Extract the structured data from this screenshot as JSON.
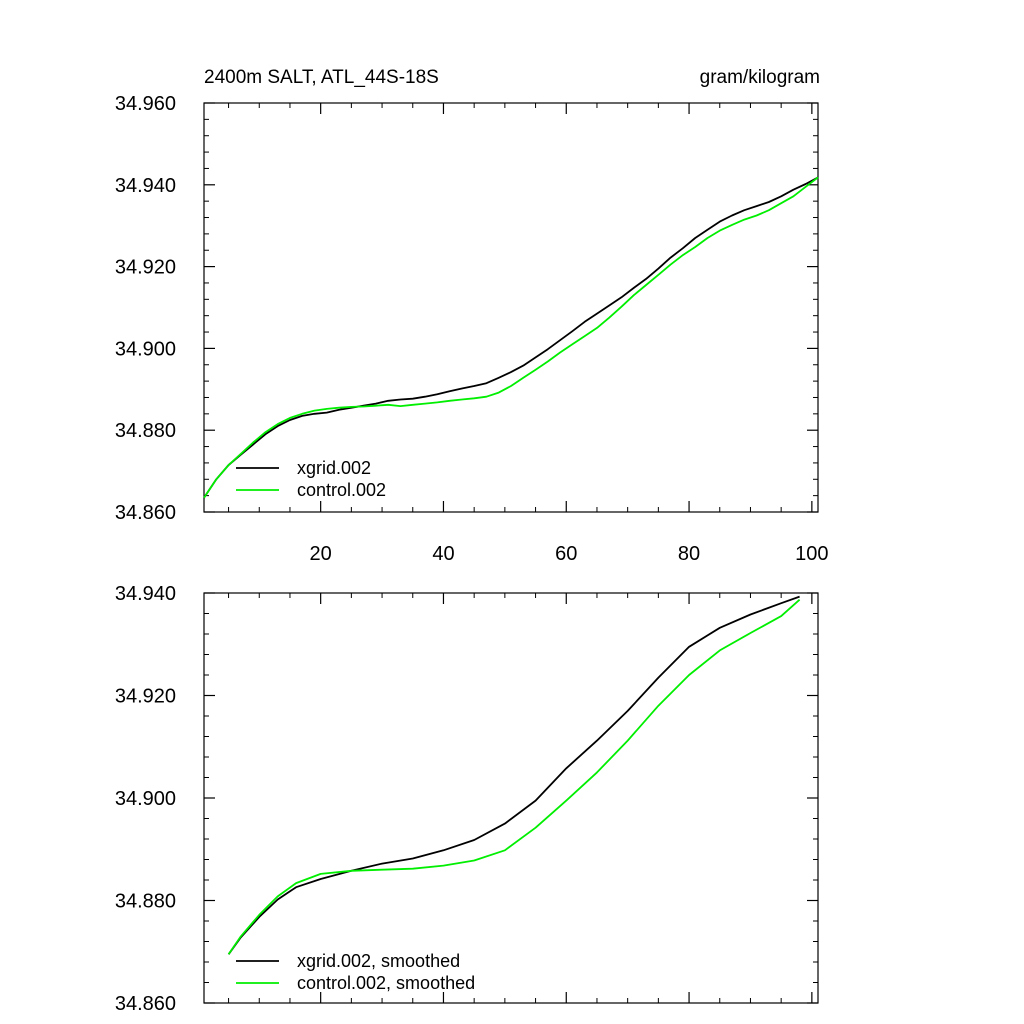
{
  "chart_data": [
    {
      "type": "line",
      "title": "2400m SALT, ATL_44S-18S",
      "units": "gram/kilogram",
      "xlim": [
        1,
        101
      ],
      "ylim": [
        34.86,
        34.96
      ],
      "x_ticks": [
        20,
        40,
        60,
        80,
        100
      ],
      "y_ticks": [
        34.86,
        34.88,
        34.9,
        34.92,
        34.94,
        34.96
      ],
      "x_tick_labels": [
        "20",
        "40",
        "60",
        "80",
        "100"
      ],
      "y_tick_labels": [
        "34.860",
        "34.880",
        "34.900",
        "34.920",
        "34.940",
        "34.960"
      ],
      "legend": [
        "xgrid.002",
        "control.002"
      ],
      "legend_position": "bottom-left",
      "series": [
        {
          "name": "xgrid.002",
          "color": "#000000",
          "x": [
            1,
            3,
            5,
            7,
            9,
            11,
            13,
            15,
            17,
            19,
            21,
            23,
            25,
            27,
            29,
            31,
            33,
            35,
            37,
            39,
            41,
            43,
            45,
            47,
            49,
            51,
            53,
            55,
            57,
            59,
            61,
            63,
            65,
            67,
            69,
            71,
            73,
            75,
            77,
            79,
            81,
            83,
            85,
            87,
            89,
            91,
            93,
            95,
            97,
            99,
            101
          ],
          "y": [
            34.8635,
            34.868,
            34.8715,
            34.874,
            34.8765,
            34.879,
            34.881,
            34.8825,
            34.8835,
            34.884,
            34.8843,
            34.885,
            34.8855,
            34.886,
            34.8865,
            34.8872,
            34.8875,
            34.8877,
            34.8882,
            34.8888,
            34.8895,
            34.8902,
            34.8908,
            34.8915,
            34.8928,
            34.8942,
            34.8958,
            34.8978,
            34.8998,
            34.902,
            34.9042,
            34.9065,
            34.9085,
            34.9105,
            34.9125,
            34.9148,
            34.917,
            34.9195,
            34.9222,
            34.9245,
            34.927,
            34.929,
            34.931,
            34.9325,
            34.9338,
            34.9348,
            34.9358,
            34.9372,
            34.9388,
            34.9402,
            34.9418
          ]
        },
        {
          "name": "control.002",
          "color": "#00ee00",
          "x": [
            1,
            3,
            5,
            7,
            9,
            11,
            13,
            15,
            17,
            19,
            21,
            23,
            25,
            27,
            29,
            31,
            33,
            35,
            37,
            39,
            41,
            43,
            45,
            47,
            49,
            51,
            53,
            55,
            57,
            59,
            61,
            63,
            65,
            67,
            69,
            71,
            73,
            75,
            77,
            79,
            81,
            83,
            85,
            87,
            89,
            91,
            93,
            95,
            97,
            99,
            101
          ],
          "y": [
            34.8635,
            34.868,
            34.8715,
            34.8742,
            34.877,
            34.8795,
            34.8815,
            34.883,
            34.884,
            34.8848,
            34.8852,
            34.8855,
            34.8857,
            34.8858,
            34.886,
            34.8862,
            34.8859,
            34.8862,
            34.8865,
            34.8868,
            34.8872,
            34.8875,
            34.8878,
            34.8882,
            34.8892,
            34.8908,
            34.8928,
            34.8948,
            34.8968,
            34.899,
            34.901,
            34.903,
            34.905,
            34.9075,
            34.9102,
            34.913,
            34.9155,
            34.918,
            34.9205,
            34.9228,
            34.9248,
            34.927,
            34.9288,
            34.9302,
            34.9315,
            34.9325,
            34.9338,
            34.9355,
            34.9372,
            34.9395,
            34.9418
          ]
        }
      ]
    },
    {
      "type": "line",
      "title": "",
      "xlim": [
        1,
        101
      ],
      "ylim": [
        34.86,
        34.94
      ],
      "x_ticks": [
        20,
        40,
        60,
        80,
        100
      ],
      "y_ticks": [
        34.86,
        34.88,
        34.9,
        34.92,
        34.94
      ],
      "y_tick_labels": [
        "34.860",
        "34.880",
        "34.900",
        "34.920",
        "34.940"
      ],
      "legend": [
        "xgrid.002, smoothed",
        "control.002, smoothed"
      ],
      "legend_position": "bottom-left",
      "series": [
        {
          "name": "xgrid.002, smoothed",
          "color": "#000000",
          "x": [
            5,
            7,
            10,
            13,
            16,
            20,
            25,
            30,
            35,
            40,
            45,
            50,
            55,
            60,
            65,
            70,
            75,
            80,
            85,
            90,
            95,
            98
          ],
          "y": [
            34.8695,
            34.8728,
            34.8768,
            34.8802,
            34.8826,
            34.8842,
            34.8858,
            34.8872,
            34.8882,
            34.8898,
            34.8918,
            34.895,
            34.8995,
            34.9058,
            34.9112,
            34.917,
            34.9235,
            34.9295,
            34.9332,
            34.9358,
            34.938,
            34.9393
          ]
        },
        {
          "name": "control.002, smoothed",
          "color": "#00ee00",
          "x": [
            5,
            7,
            10,
            13,
            16,
            20,
            25,
            30,
            35,
            40,
            45,
            50,
            55,
            60,
            65,
            70,
            75,
            80,
            85,
            90,
            95,
            98
          ],
          "y": [
            34.8695,
            34.873,
            34.8772,
            34.8808,
            34.8834,
            34.8852,
            34.8858,
            34.886,
            34.8862,
            34.8868,
            34.8878,
            34.8898,
            34.8942,
            34.8995,
            34.905,
            34.9112,
            34.918,
            34.924,
            34.9288,
            34.9322,
            34.9355,
            34.9387
          ]
        }
      ]
    }
  ]
}
